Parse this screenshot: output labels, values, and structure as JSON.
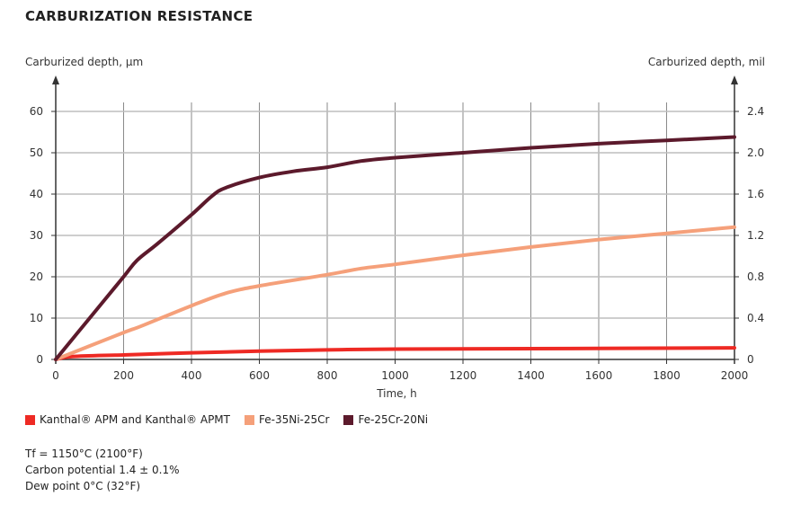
{
  "title": "CARBURIZATION RESISTANCE",
  "chart_data": {
    "type": "line",
    "title": "CARBURIZATION RESISTANCE",
    "xlabel": "Time, h",
    "ylabel": "Carburized depth, µm",
    "y2label": "Carburized depth, mil",
    "xlim": [
      0,
      2000
    ],
    "ylim": [
      0,
      60
    ],
    "y2lim": [
      0,
      2.4
    ],
    "xticks": [
      0,
      200,
      400,
      600,
      800,
      1000,
      1200,
      1400,
      1600,
      1800,
      2000
    ],
    "yticks": [
      0,
      10,
      20,
      30,
      40,
      50,
      60
    ],
    "y2ticks": [
      "0",
      "0.4",
      "0.8",
      "1.2",
      "1.6",
      "2.0",
      "2.4"
    ],
    "grid": true,
    "legend_placement": "bottom",
    "series": [
      {
        "name": "Kanthal® APM and Kanthal® APMT",
        "color": "#ee2a24",
        "x": [
          0,
          50,
          200,
          400,
          600,
          800,
          1000,
          1400,
          2000
        ],
        "y": [
          0,
          0.7,
          1.1,
          1.6,
          2.0,
          2.3,
          2.5,
          2.6,
          2.8
        ]
      },
      {
        "name": "Fe-35Ni-25Cr",
        "color": "#f5a07a",
        "x": [
          0,
          200,
          250,
          400,
          500,
          600,
          800,
          900,
          1000,
          1200,
          1400,
          1600,
          1800,
          2000
        ],
        "y": [
          0,
          6.5,
          8,
          13,
          16,
          17.8,
          20.5,
          22,
          23,
          25.2,
          27.2,
          29,
          30.5,
          32
        ]
      },
      {
        "name": "Fe-25Cr-20Ni",
        "color": "#5c1a2c",
        "x": [
          0,
          100,
          200,
          240,
          300,
          400,
          460,
          500,
          600,
          700,
          800,
          900,
          1000,
          1200,
          1400,
          1600,
          1800,
          2000
        ],
        "y": [
          0,
          10,
          20,
          24,
          28,
          35,
          39.5,
          41.5,
          44,
          45.5,
          46.5,
          48,
          48.8,
          50,
          51.2,
          52.2,
          53,
          53.8
        ]
      }
    ]
  },
  "notes": [
    "Tf = 1150°C (2100°F)",
    "Carbon potential 1.4 ± 0.1%",
    "Dew point 0°C (32°F)"
  ]
}
